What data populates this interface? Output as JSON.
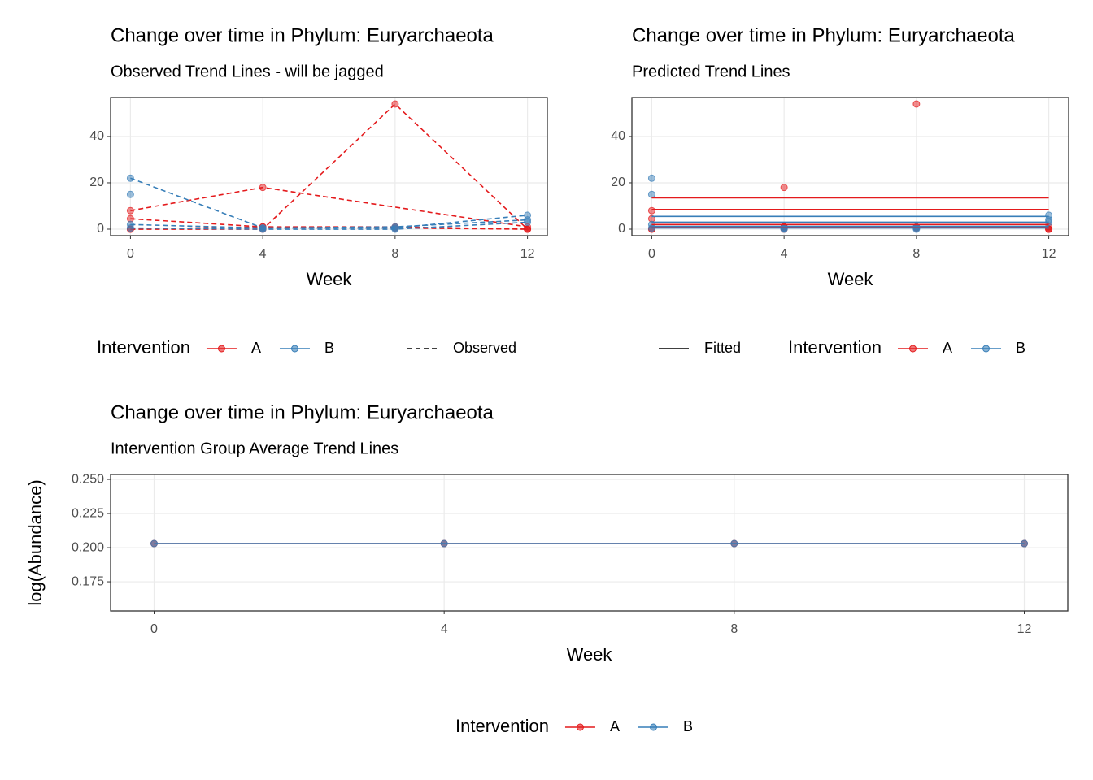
{
  "chart_data": [
    {
      "type": "line",
      "title": "Change over time in Phylum: Euryarchaeota",
      "subtitle": "Observed Trend Lines - will be jagged",
      "x_label": "Week",
      "xlim": [
        -0.6,
        12.6
      ],
      "xticks": [
        0,
        4,
        8,
        12
      ],
      "ylim": [
        -2.8,
        56.8
      ],
      "yticks": [
        0,
        20,
        40
      ],
      "grid": true,
      "line_style": "dashed",
      "legend": {
        "title": "Intervention",
        "linetype": "Observed",
        "linetype_first": false
      },
      "series": [
        {
          "name": "A",
          "color": "#e41a1c",
          "subjects": [
            {
              "x": [
                0,
                4,
                12
              ],
              "values": [
                8,
                18,
                1
              ]
            },
            {
              "x": [
                0,
                4,
                8,
                12
              ],
              "values": [
                4.5,
                1,
                1,
                0
              ]
            },
            {
              "x": [
                0,
                4,
                8,
                12
              ],
              "values": [
                0,
                0,
                54,
                0
              ]
            },
            {
              "x": [
                0,
                4,
                8,
                12
              ],
              "values": [
                0,
                1,
                0.5,
                0
              ]
            }
          ]
        },
        {
          "name": "B",
          "color": "#377eb8",
          "subjects": [
            {
              "x": [
                0,
                4,
                8,
                12
              ],
              "values": [
                22,
                0.5,
                0.5,
                6
              ]
            },
            {
              "x": [
                0
              ],
              "values": [
                15
              ]
            },
            {
              "x": [
                0,
                4,
                8,
                12
              ],
              "values": [
                2,
                0.5,
                1,
                4
              ]
            },
            {
              "x": [
                0,
                4,
                8,
                12
              ],
              "values": [
                0.5,
                0,
                0,
                3
              ]
            }
          ]
        }
      ]
    },
    {
      "type": "fitted",
      "title": "Change over time in Phylum: Euryarchaeota",
      "subtitle": "Predicted Trend Lines",
      "x_label": "Week",
      "xlim": [
        -0.6,
        12.6
      ],
      "xticks": [
        0,
        4,
        8,
        12
      ],
      "ylim": [
        -2.8,
        56.8
      ],
      "yticks": [
        0,
        20,
        40
      ],
      "grid": true,
      "line_style": "solid",
      "legend": {
        "title": "Intervention",
        "linetype": "Fitted",
        "linetype_first": true
      },
      "series": [
        {
          "name": "A",
          "color": "#e41a1c",
          "subjects": [
            {
              "x": [
                0,
                4,
                12
              ],
              "values": [
                8,
                18,
                1
              ],
              "fitted": 13.5
            },
            {
              "x": [
                0,
                4,
                8,
                12
              ],
              "values": [
                4.5,
                1,
                1,
                0
              ],
              "fitted": 8.5
            },
            {
              "x": [
                0,
                4,
                8,
                12
              ],
              "values": [
                0,
                0,
                54,
                0
              ],
              "fitted": 2
            },
            {
              "x": [
                0,
                4,
                8,
                12
              ],
              "values": [
                0,
                1,
                0.5,
                0
              ],
              "fitted": 1
            }
          ]
        },
        {
          "name": "B",
          "color": "#377eb8",
          "subjects": [
            {
              "x": [
                0,
                4,
                8,
                12
              ],
              "values": [
                22,
                0.5,
                0.5,
                6
              ],
              "fitted": 5.5
            },
            {
              "x": [
                0
              ],
              "values": [
                15
              ],
              "fitted": 3
            },
            {
              "x": [
                0,
                4,
                8,
                12
              ],
              "values": [
                2,
                0.5,
                1,
                4
              ],
              "fitted": 1.2
            },
            {
              "x": [
                0,
                4,
                8,
                12
              ],
              "values": [
                0.5,
                0,
                0,
                3
              ],
              "fitted": 0.5
            }
          ]
        }
      ]
    },
    {
      "type": "line",
      "title": "Change over time in Phylum: Euryarchaeota",
      "subtitle": "Intervention Group Average Trend Lines",
      "x_label": "Week",
      "y_label": "log(Abundance)",
      "xlim": [
        -0.6,
        12.6
      ],
      "xticks": [
        0,
        4,
        8,
        12
      ],
      "ylim": [
        0.1536,
        0.2536
      ],
      "yticks": [
        0.175,
        {
          "value": 0.2,
          "label": "0.200"
        },
        0.225,
        {
          "value": 0.25,
          "label": "0.250"
        }
      ],
      "grid": true,
      "line_style": "solid",
      "legend": {
        "title": "Intervention"
      },
      "x": [
        0,
        4,
        8,
        12
      ],
      "series": [
        {
          "name": "A",
          "color": "#e41a1c",
          "values": [
            0.203,
            0.203,
            0.203,
            0.203
          ]
        },
        {
          "name": "B",
          "color": "#377eb8",
          "values": [
            0.203,
            0.203,
            0.203,
            0.203
          ]
        }
      ]
    }
  ]
}
